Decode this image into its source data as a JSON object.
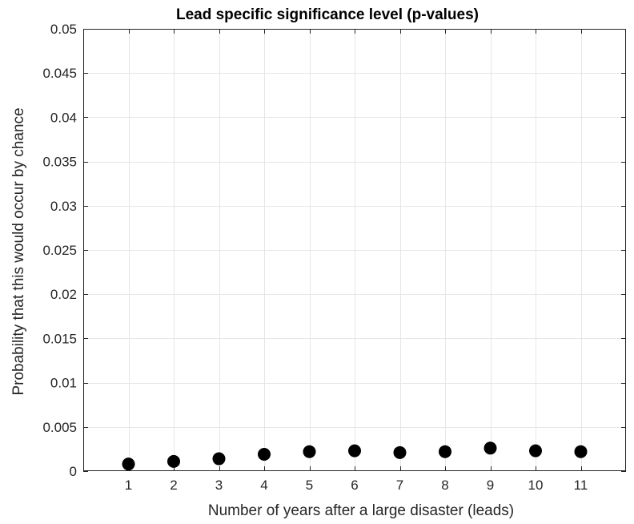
{
  "chart_data": {
    "type": "scatter",
    "title": "Lead specific significance level (p-values)",
    "xlabel": "Number of years after a large disaster (leads)",
    "ylabel": "Probability that this would occur by chance",
    "x": [
      1,
      2,
      3,
      4,
      5,
      6,
      7,
      8,
      9,
      10,
      11
    ],
    "y": [
      0.0008,
      0.0011,
      0.0014,
      0.0019,
      0.0022,
      0.0023,
      0.0021,
      0.0022,
      0.0026,
      0.0023,
      0.0022
    ],
    "xlim": [
      0,
      12
    ],
    "ylim": [
      0,
      0.05
    ],
    "x_ticks": [
      1,
      2,
      3,
      4,
      5,
      6,
      7,
      8,
      9,
      10,
      11
    ],
    "x_tick_labels": [
      "1",
      "2",
      "3",
      "4",
      "5",
      "6",
      "7",
      "8",
      "9",
      "10",
      "11"
    ],
    "y_ticks": [
      0,
      0.005,
      0.01,
      0.015,
      0.02,
      0.025,
      0.03,
      0.035,
      0.04,
      0.045,
      0.05
    ],
    "y_tick_labels": [
      "0",
      "0.005",
      "0.01",
      "0.015",
      "0.02",
      "0.025",
      "0.03",
      "0.035",
      "0.04",
      "0.045",
      "0.05"
    ],
    "grid": true,
    "marker_color": "#000000",
    "grid_color": "#e6e6e6",
    "axis_color": "#262626"
  }
}
